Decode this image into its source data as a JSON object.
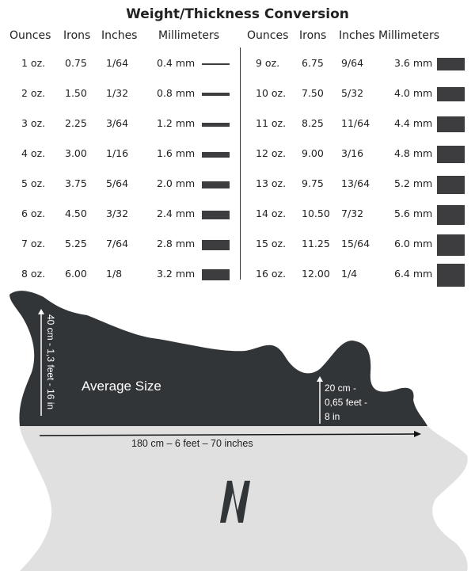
{
  "title": "Weight/Thickness Conversion",
  "headers": [
    "Ounces",
    "Irons",
    "Inches",
    "Millimeters"
  ],
  "rows": [
    {
      "oz": "1 oz.",
      "irons": "0.75",
      "inches": "1/64",
      "mm": "0.4 mm",
      "thickness_mm": 0.4
    },
    {
      "oz": "2 oz.",
      "irons": "1.50",
      "inches": "1/32",
      "mm": "0.8 mm",
      "thickness_mm": 0.8
    },
    {
      "oz": "3 oz.",
      "irons": "2.25",
      "inches": "3/64",
      "mm": "1.2 mm",
      "thickness_mm": 1.2
    },
    {
      "oz": "4 oz.",
      "irons": "3.00",
      "inches": "1/16",
      "mm": "1.6 mm",
      "thickness_mm": 1.6
    },
    {
      "oz": "5 oz.",
      "irons": "3.75",
      "inches": "5/64",
      "mm": "2.0 mm",
      "thickness_mm": 2.0
    },
    {
      "oz": "6 oz.",
      "irons": "4.50",
      "inches": "3/32",
      "mm": "2.4 mm",
      "thickness_mm": 2.4
    },
    {
      "oz": "7 oz.",
      "irons": "5.25",
      "inches": "7/64",
      "mm": "2.8 mm",
      "thickness_mm": 2.8
    },
    {
      "oz": "8 oz.",
      "irons": "6.00",
      "inches": "1/8",
      "mm": "3.2 mm",
      "thickness_mm": 3.2
    },
    {
      "oz": "9 oz.",
      "irons": "6.75",
      "inches": "9/64",
      "mm": "3.6 mm",
      "thickness_mm": 3.6
    },
    {
      "oz": "10 oz.",
      "irons": "7.50",
      "inches": "5/32",
      "mm": "4.0 mm",
      "thickness_mm": 4.0
    },
    {
      "oz": "11 oz.",
      "irons": "8.25",
      "inches": "11/64",
      "mm": "4.4 mm",
      "thickness_mm": 4.4
    },
    {
      "oz": "12 oz.",
      "irons": "9.00",
      "inches": "3/16",
      "mm": "4.8 mm",
      "thickness_mm": 4.8
    },
    {
      "oz": "13 oz.",
      "irons": "9.75",
      "inches": "13/64",
      "mm": "5.2 mm",
      "thickness_mm": 5.2
    },
    {
      "oz": "14 oz.",
      "irons": "10.50",
      "inches": "7/32",
      "mm": "5.6 mm",
      "thickness_mm": 5.6
    },
    {
      "oz": "15 oz.",
      "irons": "11.25",
      "inches": "15/64",
      "mm": "6.0 mm",
      "thickness_mm": 6.0
    },
    {
      "oz": "16 oz.",
      "irons": "12.00",
      "inches": "1/4",
      "mm": "6.4 mm",
      "thickness_mm": 6.4
    }
  ],
  "hide": {
    "label": "Average Size",
    "height_label": "40 cm - 1,3 feet - 16 in",
    "small_height_label": [
      "20 cm -",
      "0,65 feet -",
      "8 in"
    ],
    "length_label": "180 cm – 6 feet – 70 inches",
    "logo_letter": "N"
  },
  "colors": {
    "dark": "#323538",
    "light": "#e0e0e0",
    "bar": "#3d3d3f"
  }
}
